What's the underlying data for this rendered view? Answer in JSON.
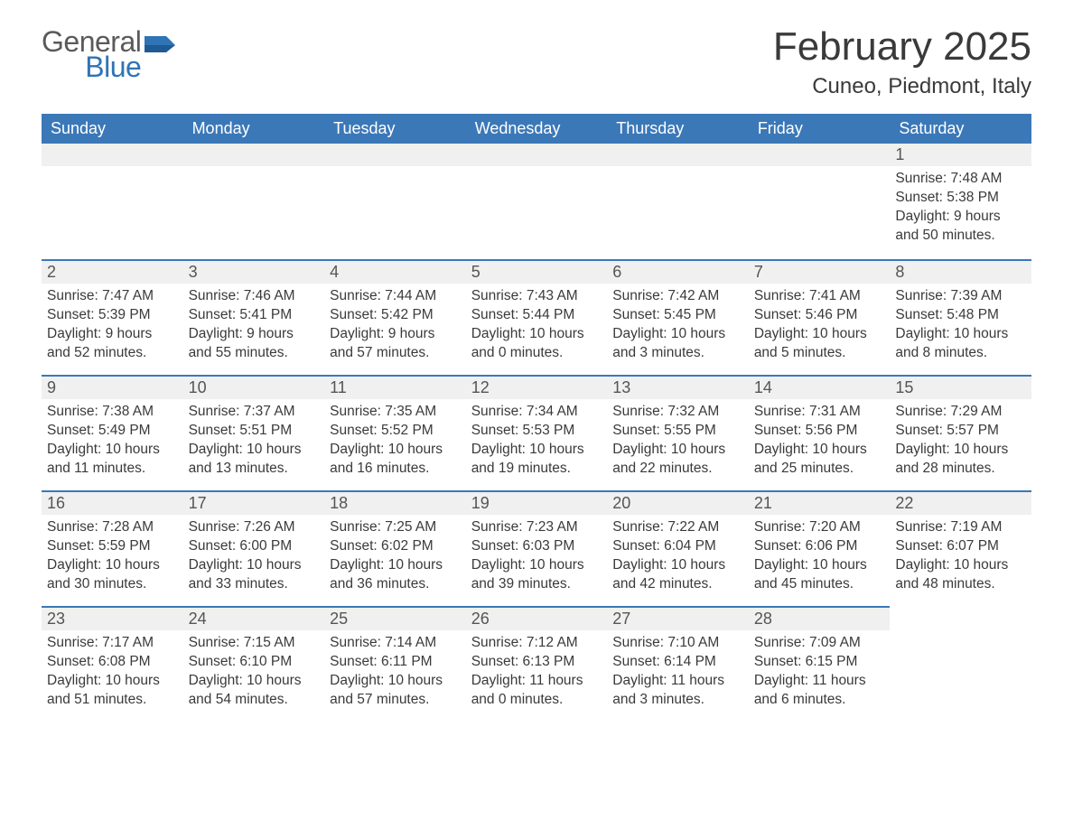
{
  "brand": {
    "general": "General",
    "blue": "Blue",
    "logo_color": "#2f74b5"
  },
  "title": "February 2025",
  "subtitle": "Cuneo, Piedmont, Italy",
  "colors": {
    "header_bg": "#3b78b8",
    "header_text": "#ffffff",
    "daynum_bg": "#f0f0f0",
    "row_border": "#3b78b8",
    "text": "#3a3a3a"
  },
  "columns": [
    "Sunday",
    "Monday",
    "Tuesday",
    "Wednesday",
    "Thursday",
    "Friday",
    "Saturday"
  ],
  "weeks": [
    [
      null,
      null,
      null,
      null,
      null,
      null,
      {
        "n": "1",
        "sunrise": "7:48 AM",
        "sunset": "5:38 PM",
        "day_h": "9",
        "day_m": "50"
      }
    ],
    [
      {
        "n": "2",
        "sunrise": "7:47 AM",
        "sunset": "5:39 PM",
        "day_h": "9",
        "day_m": "52"
      },
      {
        "n": "3",
        "sunrise": "7:46 AM",
        "sunset": "5:41 PM",
        "day_h": "9",
        "day_m": "55"
      },
      {
        "n": "4",
        "sunrise": "7:44 AM",
        "sunset": "5:42 PM",
        "day_h": "9",
        "day_m": "57"
      },
      {
        "n": "5",
        "sunrise": "7:43 AM",
        "sunset": "5:44 PM",
        "day_h": "10",
        "day_m": "0"
      },
      {
        "n": "6",
        "sunrise": "7:42 AM",
        "sunset": "5:45 PM",
        "day_h": "10",
        "day_m": "3"
      },
      {
        "n": "7",
        "sunrise": "7:41 AM",
        "sunset": "5:46 PM",
        "day_h": "10",
        "day_m": "5"
      },
      {
        "n": "8",
        "sunrise": "7:39 AM",
        "sunset": "5:48 PM",
        "day_h": "10",
        "day_m": "8"
      }
    ],
    [
      {
        "n": "9",
        "sunrise": "7:38 AM",
        "sunset": "5:49 PM",
        "day_h": "10",
        "day_m": "11"
      },
      {
        "n": "10",
        "sunrise": "7:37 AM",
        "sunset": "5:51 PM",
        "day_h": "10",
        "day_m": "13"
      },
      {
        "n": "11",
        "sunrise": "7:35 AM",
        "sunset": "5:52 PM",
        "day_h": "10",
        "day_m": "16"
      },
      {
        "n": "12",
        "sunrise": "7:34 AM",
        "sunset": "5:53 PM",
        "day_h": "10",
        "day_m": "19"
      },
      {
        "n": "13",
        "sunrise": "7:32 AM",
        "sunset": "5:55 PM",
        "day_h": "10",
        "day_m": "22"
      },
      {
        "n": "14",
        "sunrise": "7:31 AM",
        "sunset": "5:56 PM",
        "day_h": "10",
        "day_m": "25"
      },
      {
        "n": "15",
        "sunrise": "7:29 AM",
        "sunset": "5:57 PM",
        "day_h": "10",
        "day_m": "28"
      }
    ],
    [
      {
        "n": "16",
        "sunrise": "7:28 AM",
        "sunset": "5:59 PM",
        "day_h": "10",
        "day_m": "30"
      },
      {
        "n": "17",
        "sunrise": "7:26 AM",
        "sunset": "6:00 PM",
        "day_h": "10",
        "day_m": "33"
      },
      {
        "n": "18",
        "sunrise": "7:25 AM",
        "sunset": "6:02 PM",
        "day_h": "10",
        "day_m": "36"
      },
      {
        "n": "19",
        "sunrise": "7:23 AM",
        "sunset": "6:03 PM",
        "day_h": "10",
        "day_m": "39"
      },
      {
        "n": "20",
        "sunrise": "7:22 AM",
        "sunset": "6:04 PM",
        "day_h": "10",
        "day_m": "42"
      },
      {
        "n": "21",
        "sunrise": "7:20 AM",
        "sunset": "6:06 PM",
        "day_h": "10",
        "day_m": "45"
      },
      {
        "n": "22",
        "sunrise": "7:19 AM",
        "sunset": "6:07 PM",
        "day_h": "10",
        "day_m": "48"
      }
    ],
    [
      {
        "n": "23",
        "sunrise": "7:17 AM",
        "sunset": "6:08 PM",
        "day_h": "10",
        "day_m": "51"
      },
      {
        "n": "24",
        "sunrise": "7:15 AM",
        "sunset": "6:10 PM",
        "day_h": "10",
        "day_m": "54"
      },
      {
        "n": "25",
        "sunrise": "7:14 AM",
        "sunset": "6:11 PM",
        "day_h": "10",
        "day_m": "57"
      },
      {
        "n": "26",
        "sunrise": "7:12 AM",
        "sunset": "6:13 PM",
        "day_h": "11",
        "day_m": "0"
      },
      {
        "n": "27",
        "sunrise": "7:10 AM",
        "sunset": "6:14 PM",
        "day_h": "11",
        "day_m": "3"
      },
      {
        "n": "28",
        "sunrise": "7:09 AM",
        "sunset": "6:15 PM",
        "day_h": "11",
        "day_m": "6"
      },
      null
    ]
  ],
  "labels": {
    "sunrise": "Sunrise: ",
    "sunset": "Sunset: ",
    "daylight_prefix": "Daylight: ",
    "hours_word": " hours",
    "and_word": "and ",
    "minutes_word": " minutes."
  }
}
